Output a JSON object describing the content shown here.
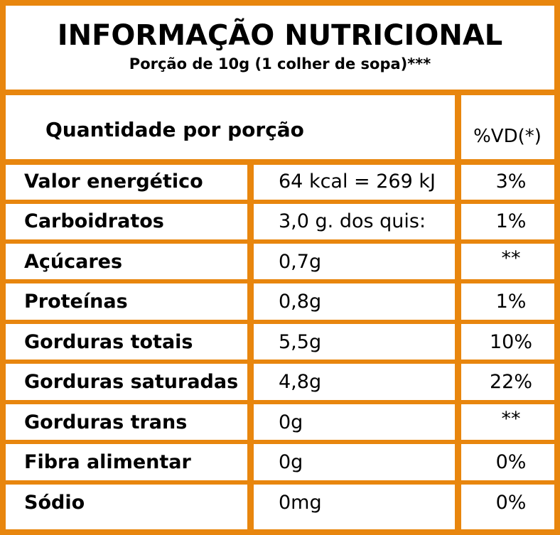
{
  "header": {
    "title": "INFORMAÇÃO NUTRICIONAL",
    "subtitle": "Porção de 10g (1 colher de sopa)***"
  },
  "table": {
    "quantity_header": "Quantidade por porção",
    "vd_header": "%VD(*)",
    "rows": [
      {
        "name": "Valor energético",
        "amount": "64 kcal = 269 kJ",
        "vd": "3%"
      },
      {
        "name": "Carboidratos",
        "amount": "3,0 g. dos quis:",
        "vd": "1%"
      },
      {
        "name": "Açúcares",
        "amount": "0,7g",
        "vd": "**"
      },
      {
        "name": "Proteínas",
        "amount": "0,8g",
        "vd": "1%"
      },
      {
        "name": "Gorduras totais",
        "amount": "5,5g",
        "vd": "10%"
      },
      {
        "name": "Gorduras saturadas",
        "amount": "4,8g",
        "vd": "22%"
      },
      {
        "name": "Gorduras trans",
        "amount": "0g",
        "vd": "**"
      },
      {
        "name": "Fibra alimentar",
        "amount": "0g",
        "vd": "0%"
      },
      {
        "name": "Sódio",
        "amount": "0mg",
        "vd": "0%"
      }
    ]
  },
  "colors": {
    "rule": "#E8860E",
    "text": "#000000",
    "background": "#FFFFFF"
  }
}
